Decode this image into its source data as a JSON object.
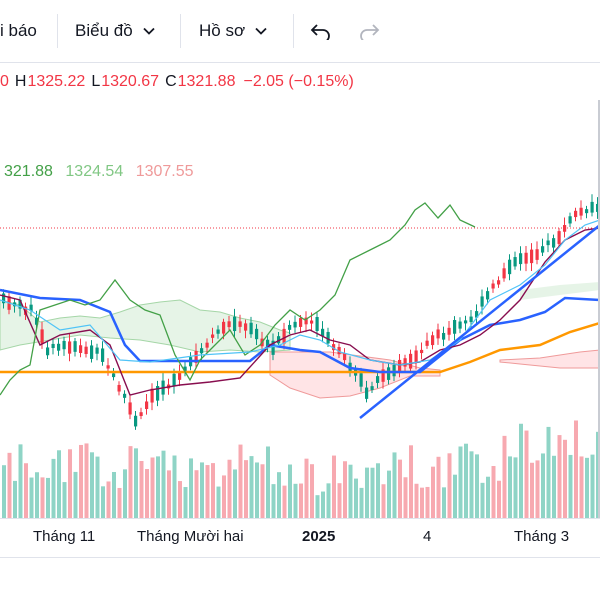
{
  "toolbar": {
    "alert_label": "i báo",
    "chart_label": "Biểu đồ",
    "profile_label": "Hồ sơ"
  },
  "legend": {
    "open_tail": "0",
    "high_prefix": "H",
    "high": "1325.22",
    "low_prefix": "L",
    "low": "1320.67",
    "close_prefix": "C",
    "close": "1321.88",
    "change": "−2.05 (−0.15%)",
    "color": "#f23645"
  },
  "ichimoku": {
    "v1": "321.88",
    "v2": "1324.54",
    "v3": "1307.55",
    "c1": "#43a047",
    "c2": "#81c784",
    "c3": "#ef9a9a"
  },
  "xaxis": {
    "labels": [
      "Tháng 11",
      "Tháng Mười hai",
      "2025",
      "4",
      "Tháng 3"
    ]
  },
  "colors": {
    "up": "#089981",
    "down": "#f23645",
    "vol_up": "#8fd4c6",
    "vol_down": "#f7a9b0",
    "kijun": "#2962ff",
    "tenkan": "#880e4f",
    "chikou": "#43a047",
    "orange": "#ff9800"
  }
}
